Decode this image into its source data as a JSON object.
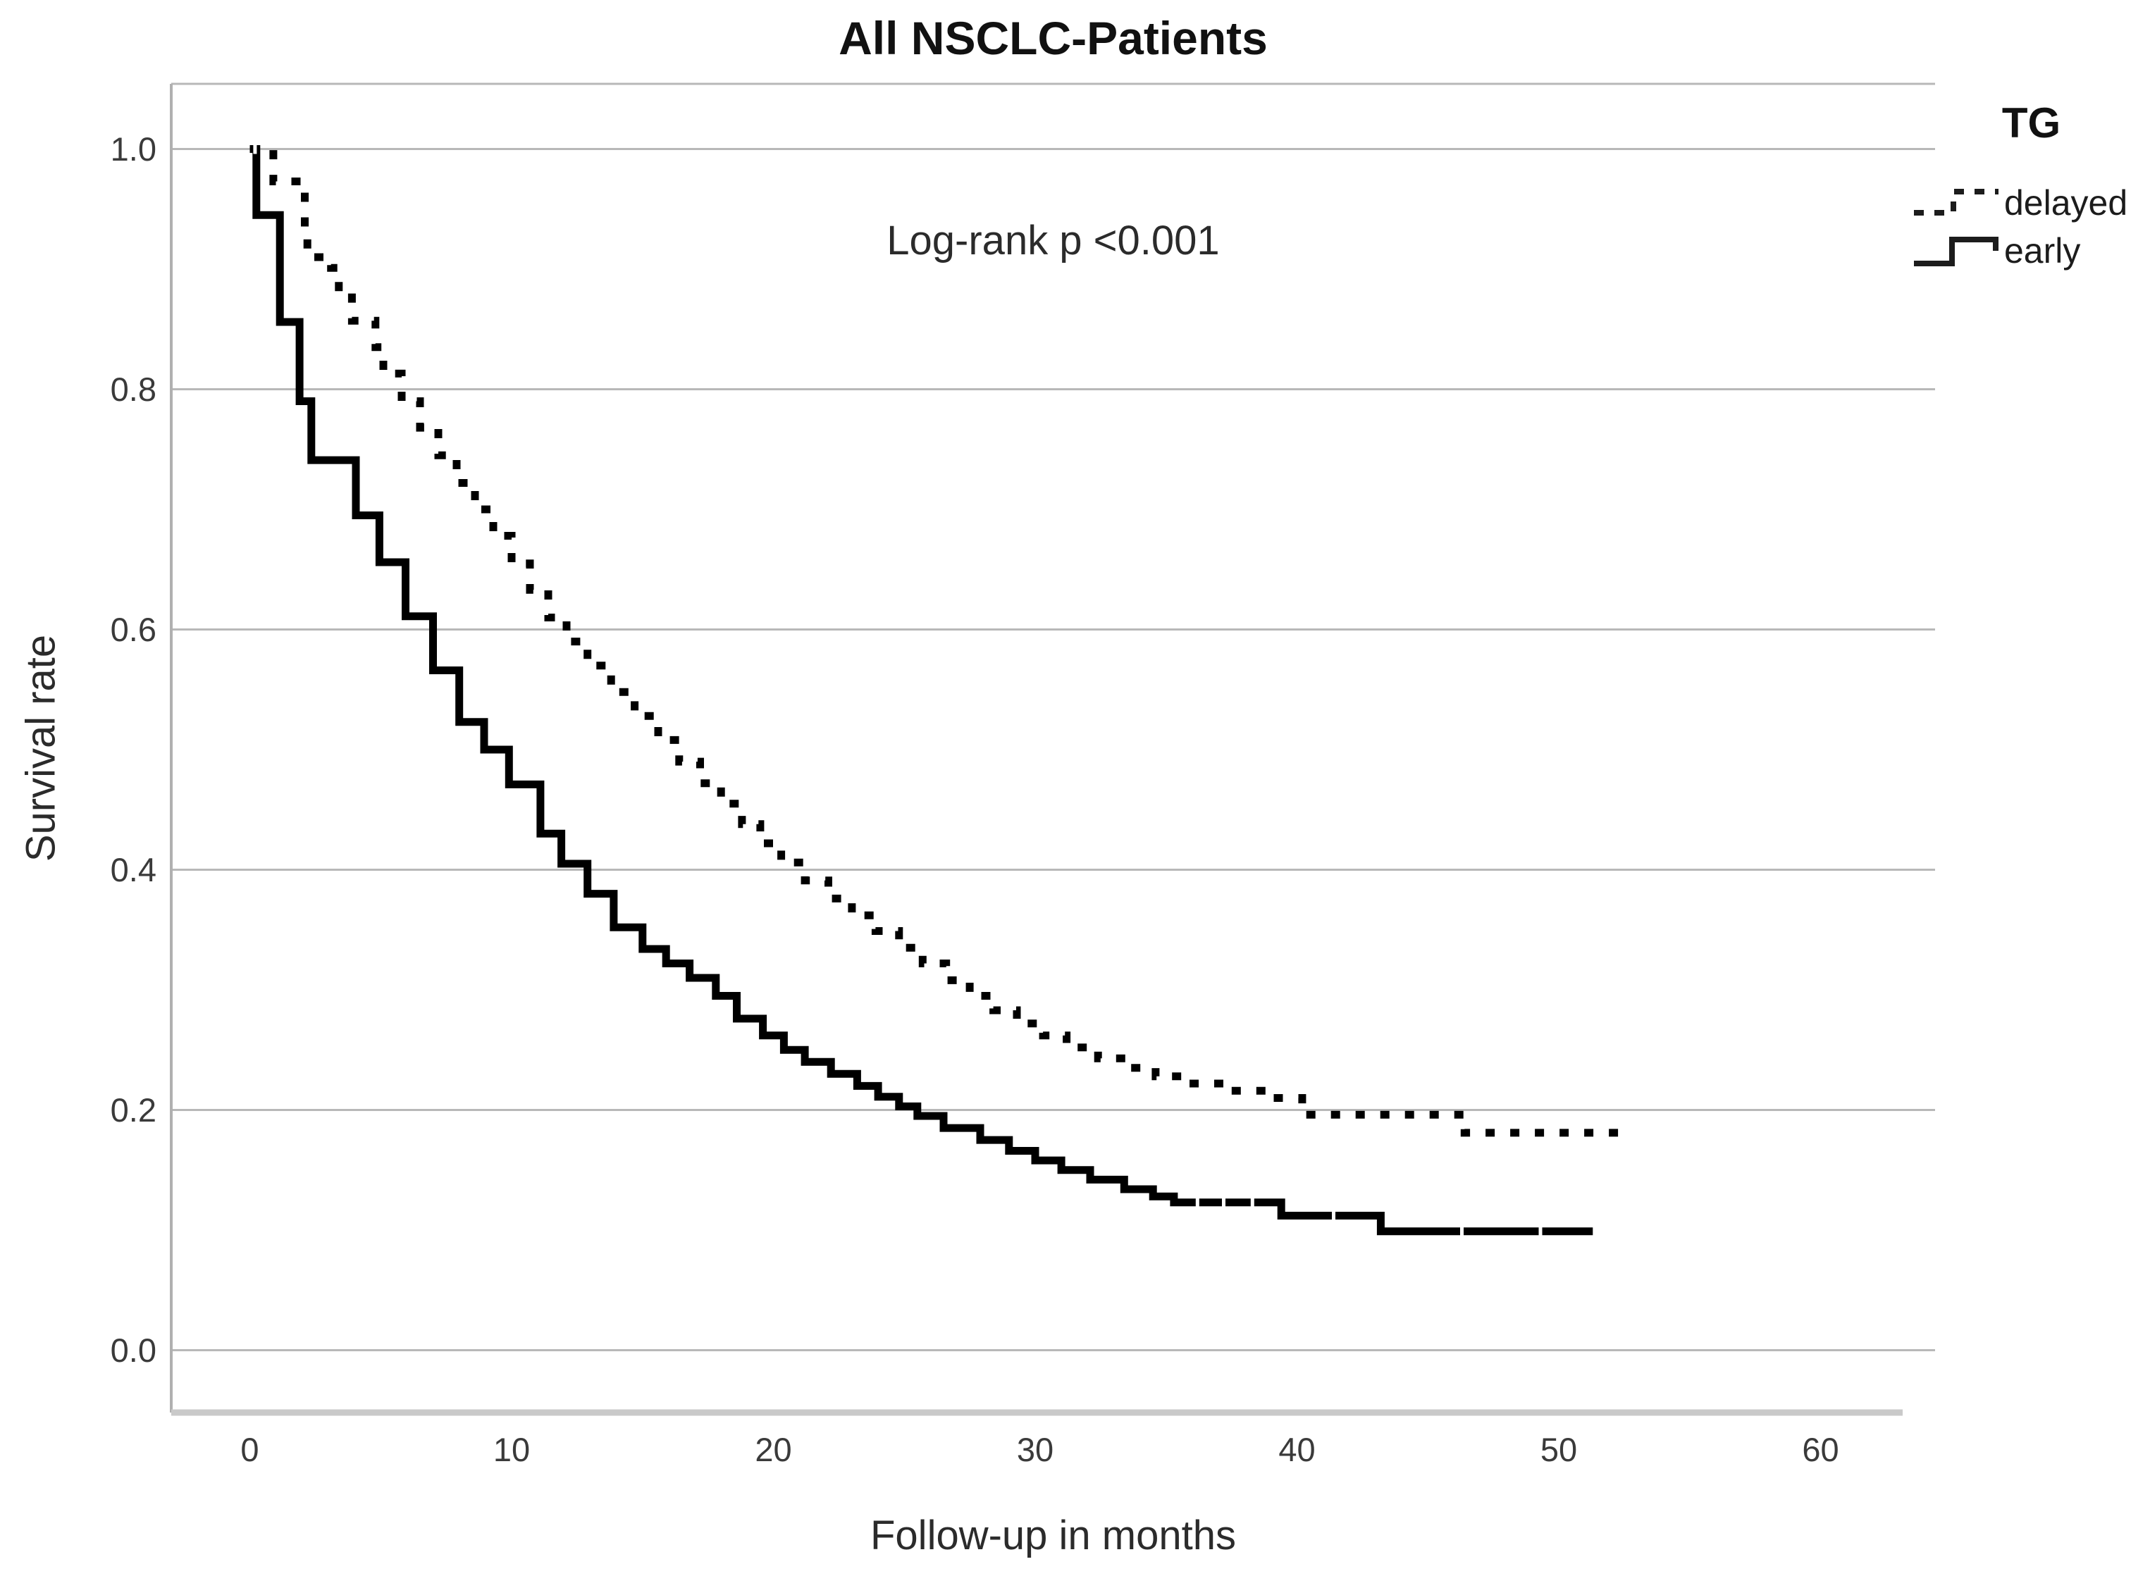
{
  "title": "All NSCLC-Patients",
  "annotation": "Log-rank p <0.001",
  "legend": {
    "title": "TG",
    "items": [
      {
        "label": "delayed",
        "style": "dashed"
      },
      {
        "label": "early",
        "style": "solid"
      }
    ]
  },
  "axes": {
    "x": {
      "title": "Follow-up in months",
      "ticks": [
        0,
        10,
        20,
        30,
        40,
        50,
        60
      ]
    },
    "y": {
      "title": "Survival rate",
      "ticks": [
        "1.0",
        "0.8",
        "0.6",
        "0.4",
        "0.2",
        "0.0"
      ]
    }
  },
  "colors": {
    "background": "#ffffff",
    "gridline": "#b8b8b8",
    "y_axis_line": "#b0b0b0",
    "x_axis_line": "#c9c9c9",
    "curve": "#000000",
    "censor_mark": "#ffffff"
  },
  "chart_data": {
    "type": "line",
    "subtype": "kaplan-meier-step",
    "title": "All NSCLC-Patients",
    "xlabel": "Follow-up in months",
    "ylabel": "Survival rate",
    "annotation": "Log-rank p <0.001",
    "xlim": [
      -3,
      64
    ],
    "ylim": [
      -0.05,
      1.055
    ],
    "x_ticks": [
      0,
      10,
      20,
      30,
      40,
      50,
      60
    ],
    "y_ticks": [
      1.0,
      0.8,
      0.6,
      0.4,
      0.2,
      0.0
    ],
    "grid": "horizontal",
    "legend_position": "top-right",
    "legend_title": "TG",
    "series": [
      {
        "name": "delayed",
        "line": "dashed",
        "color": "#000000",
        "points": [
          [
            0,
            1.0
          ],
          [
            0.9,
            0.973
          ],
          [
            2.1,
            0.93
          ],
          [
            2.2,
            0.91
          ],
          [
            3.1,
            0.901
          ],
          [
            3.4,
            0.88
          ],
          [
            3.9,
            0.857
          ],
          [
            4.8,
            0.835
          ],
          [
            5.1,
            0.813
          ],
          [
            5.8,
            0.79
          ],
          [
            6.5,
            0.768
          ],
          [
            7.2,
            0.745
          ],
          [
            7.9,
            0.722
          ],
          [
            8.6,
            0.7
          ],
          [
            9.3,
            0.678
          ],
          [
            10.0,
            0.655
          ],
          [
            10.7,
            0.633
          ],
          [
            11.4,
            0.61
          ],
          [
            12.1,
            0.59
          ],
          [
            12.9,
            0.57
          ],
          [
            13.8,
            0.548
          ],
          [
            14.7,
            0.528
          ],
          [
            15.6,
            0.508
          ],
          [
            16.4,
            0.49
          ],
          [
            17.2,
            0.472
          ],
          [
            18.0,
            0.455
          ],
          [
            18.8,
            0.438
          ],
          [
            19.5,
            0.422
          ],
          [
            20.3,
            0.406
          ],
          [
            21.2,
            0.391
          ],
          [
            22.1,
            0.376
          ],
          [
            23.0,
            0.362
          ],
          [
            23.9,
            0.349
          ],
          [
            24.8,
            0.335
          ],
          [
            25.7,
            0.322
          ],
          [
            26.6,
            0.308
          ],
          [
            27.5,
            0.295
          ],
          [
            28.4,
            0.283
          ],
          [
            29.3,
            0.272
          ],
          [
            30.3,
            0.262
          ],
          [
            31.2,
            0.252
          ],
          [
            32.4,
            0.243
          ],
          [
            33.5,
            0.235
          ],
          [
            34.6,
            0.228
          ],
          [
            35.8,
            0.222
          ],
          [
            37.3,
            0.216
          ],
          [
            38.9,
            0.21
          ],
          [
            40.2,
            0.196
          ],
          [
            46.4,
            0.181
          ],
          [
            52.5,
            0.181
          ]
        ],
        "censor_ticks": []
      },
      {
        "name": "early",
        "line": "solid",
        "color": "#000000",
        "points": [
          [
            0,
            1.0
          ],
          [
            0.25,
            0.945
          ],
          [
            1.15,
            0.856
          ],
          [
            1.9,
            0.79
          ],
          [
            2.35,
            0.741
          ],
          [
            4.05,
            0.695
          ],
          [
            4.95,
            0.656
          ],
          [
            5.95,
            0.611
          ],
          [
            7.0,
            0.566
          ],
          [
            8.0,
            0.523
          ],
          [
            8.95,
            0.5
          ],
          [
            9.9,
            0.471
          ],
          [
            11.1,
            0.43
          ],
          [
            11.9,
            0.405
          ],
          [
            12.9,
            0.38
          ],
          [
            13.9,
            0.352
          ],
          [
            15.0,
            0.334
          ],
          [
            15.9,
            0.322
          ],
          [
            16.8,
            0.31
          ],
          [
            17.8,
            0.295
          ],
          [
            18.6,
            0.276
          ],
          [
            19.6,
            0.262
          ],
          [
            20.4,
            0.25
          ],
          [
            21.2,
            0.24
          ],
          [
            22.2,
            0.23
          ],
          [
            23.2,
            0.22
          ],
          [
            24.0,
            0.211
          ],
          [
            24.8,
            0.203
          ],
          [
            25.5,
            0.195
          ],
          [
            26.5,
            0.185
          ],
          [
            27.9,
            0.175
          ],
          [
            29.0,
            0.166
          ],
          [
            30.0,
            0.158
          ],
          [
            31.0,
            0.15
          ],
          [
            32.1,
            0.142
          ],
          [
            33.4,
            0.134
          ],
          [
            34.5,
            0.128
          ],
          [
            35.3,
            0.123
          ],
          [
            39.4,
            0.112
          ],
          [
            43.2,
            0.099
          ],
          [
            51.3,
            0.099
          ]
        ],
        "censor_ticks": [
          [
            0.2,
            1.0
          ],
          [
            30.6,
            0.175
          ],
          [
            36.2,
            0.123
          ],
          [
            37.2,
            0.123
          ],
          [
            38.3,
            0.123
          ],
          [
            41.4,
            0.112
          ],
          [
            46.3,
            0.099
          ],
          [
            49.3,
            0.099
          ]
        ]
      }
    ]
  }
}
